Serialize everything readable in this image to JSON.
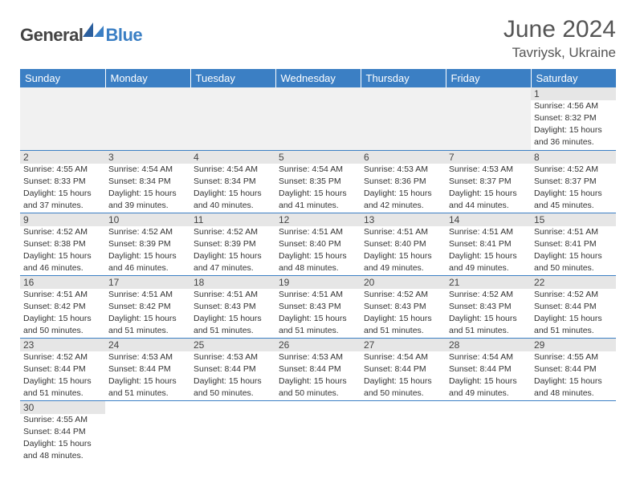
{
  "logo": {
    "general": "General",
    "blue": "Blue"
  },
  "title": "June 2024",
  "location": "Tavriysk, Ukraine",
  "weekdays": [
    "Sunday",
    "Monday",
    "Tuesday",
    "Wednesday",
    "Thursday",
    "Friday",
    "Saturday"
  ],
  "colors": {
    "headerBlue": "#3b7fc4",
    "grayBand": "#e6e6e6",
    "emptyGray": "#f1f1f1",
    "borderBlue": "#3b7fc4",
    "textGray": "#555"
  },
  "weeks": [
    [
      null,
      null,
      null,
      null,
      null,
      null,
      {
        "n": "1",
        "sr": "Sunrise: 4:56 AM",
        "ss": "Sunset: 8:32 PM",
        "d1": "Daylight: 15 hours",
        "d2": "and 36 minutes."
      }
    ],
    [
      {
        "n": "2",
        "sr": "Sunrise: 4:55 AM",
        "ss": "Sunset: 8:33 PM",
        "d1": "Daylight: 15 hours",
        "d2": "and 37 minutes."
      },
      {
        "n": "3",
        "sr": "Sunrise: 4:54 AM",
        "ss": "Sunset: 8:34 PM",
        "d1": "Daylight: 15 hours",
        "d2": "and 39 minutes."
      },
      {
        "n": "4",
        "sr": "Sunrise: 4:54 AM",
        "ss": "Sunset: 8:34 PM",
        "d1": "Daylight: 15 hours",
        "d2": "and 40 minutes."
      },
      {
        "n": "5",
        "sr": "Sunrise: 4:54 AM",
        "ss": "Sunset: 8:35 PM",
        "d1": "Daylight: 15 hours",
        "d2": "and 41 minutes."
      },
      {
        "n": "6",
        "sr": "Sunrise: 4:53 AM",
        "ss": "Sunset: 8:36 PM",
        "d1": "Daylight: 15 hours",
        "d2": "and 42 minutes."
      },
      {
        "n": "7",
        "sr": "Sunrise: 4:53 AM",
        "ss": "Sunset: 8:37 PM",
        "d1": "Daylight: 15 hours",
        "d2": "and 44 minutes."
      },
      {
        "n": "8",
        "sr": "Sunrise: 4:52 AM",
        "ss": "Sunset: 8:37 PM",
        "d1": "Daylight: 15 hours",
        "d2": "and 45 minutes."
      }
    ],
    [
      {
        "n": "9",
        "sr": "Sunrise: 4:52 AM",
        "ss": "Sunset: 8:38 PM",
        "d1": "Daylight: 15 hours",
        "d2": "and 46 minutes."
      },
      {
        "n": "10",
        "sr": "Sunrise: 4:52 AM",
        "ss": "Sunset: 8:39 PM",
        "d1": "Daylight: 15 hours",
        "d2": "and 46 minutes."
      },
      {
        "n": "11",
        "sr": "Sunrise: 4:52 AM",
        "ss": "Sunset: 8:39 PM",
        "d1": "Daylight: 15 hours",
        "d2": "and 47 minutes."
      },
      {
        "n": "12",
        "sr": "Sunrise: 4:51 AM",
        "ss": "Sunset: 8:40 PM",
        "d1": "Daylight: 15 hours",
        "d2": "and 48 minutes."
      },
      {
        "n": "13",
        "sr": "Sunrise: 4:51 AM",
        "ss": "Sunset: 8:40 PM",
        "d1": "Daylight: 15 hours",
        "d2": "and 49 minutes."
      },
      {
        "n": "14",
        "sr": "Sunrise: 4:51 AM",
        "ss": "Sunset: 8:41 PM",
        "d1": "Daylight: 15 hours",
        "d2": "and 49 minutes."
      },
      {
        "n": "15",
        "sr": "Sunrise: 4:51 AM",
        "ss": "Sunset: 8:41 PM",
        "d1": "Daylight: 15 hours",
        "d2": "and 50 minutes."
      }
    ],
    [
      {
        "n": "16",
        "sr": "Sunrise: 4:51 AM",
        "ss": "Sunset: 8:42 PM",
        "d1": "Daylight: 15 hours",
        "d2": "and 50 minutes."
      },
      {
        "n": "17",
        "sr": "Sunrise: 4:51 AM",
        "ss": "Sunset: 8:42 PM",
        "d1": "Daylight: 15 hours",
        "d2": "and 51 minutes."
      },
      {
        "n": "18",
        "sr": "Sunrise: 4:51 AM",
        "ss": "Sunset: 8:43 PM",
        "d1": "Daylight: 15 hours",
        "d2": "and 51 minutes."
      },
      {
        "n": "19",
        "sr": "Sunrise: 4:51 AM",
        "ss": "Sunset: 8:43 PM",
        "d1": "Daylight: 15 hours",
        "d2": "and 51 minutes."
      },
      {
        "n": "20",
        "sr": "Sunrise: 4:52 AM",
        "ss": "Sunset: 8:43 PM",
        "d1": "Daylight: 15 hours",
        "d2": "and 51 minutes."
      },
      {
        "n": "21",
        "sr": "Sunrise: 4:52 AM",
        "ss": "Sunset: 8:43 PM",
        "d1": "Daylight: 15 hours",
        "d2": "and 51 minutes."
      },
      {
        "n": "22",
        "sr": "Sunrise: 4:52 AM",
        "ss": "Sunset: 8:44 PM",
        "d1": "Daylight: 15 hours",
        "d2": "and 51 minutes."
      }
    ],
    [
      {
        "n": "23",
        "sr": "Sunrise: 4:52 AM",
        "ss": "Sunset: 8:44 PM",
        "d1": "Daylight: 15 hours",
        "d2": "and 51 minutes."
      },
      {
        "n": "24",
        "sr": "Sunrise: 4:53 AM",
        "ss": "Sunset: 8:44 PM",
        "d1": "Daylight: 15 hours",
        "d2": "and 51 minutes."
      },
      {
        "n": "25",
        "sr": "Sunrise: 4:53 AM",
        "ss": "Sunset: 8:44 PM",
        "d1": "Daylight: 15 hours",
        "d2": "and 50 minutes."
      },
      {
        "n": "26",
        "sr": "Sunrise: 4:53 AM",
        "ss": "Sunset: 8:44 PM",
        "d1": "Daylight: 15 hours",
        "d2": "and 50 minutes."
      },
      {
        "n": "27",
        "sr": "Sunrise: 4:54 AM",
        "ss": "Sunset: 8:44 PM",
        "d1": "Daylight: 15 hours",
        "d2": "and 50 minutes."
      },
      {
        "n": "28",
        "sr": "Sunrise: 4:54 AM",
        "ss": "Sunset: 8:44 PM",
        "d1": "Daylight: 15 hours",
        "d2": "and 49 minutes."
      },
      {
        "n": "29",
        "sr": "Sunrise: 4:55 AM",
        "ss": "Sunset: 8:44 PM",
        "d1": "Daylight: 15 hours",
        "d2": "and 48 minutes."
      }
    ],
    [
      {
        "n": "30",
        "sr": "Sunrise: 4:55 AM",
        "ss": "Sunset: 8:44 PM",
        "d1": "Daylight: 15 hours",
        "d2": "and 48 minutes."
      },
      null,
      null,
      null,
      null,
      null,
      null
    ]
  ]
}
